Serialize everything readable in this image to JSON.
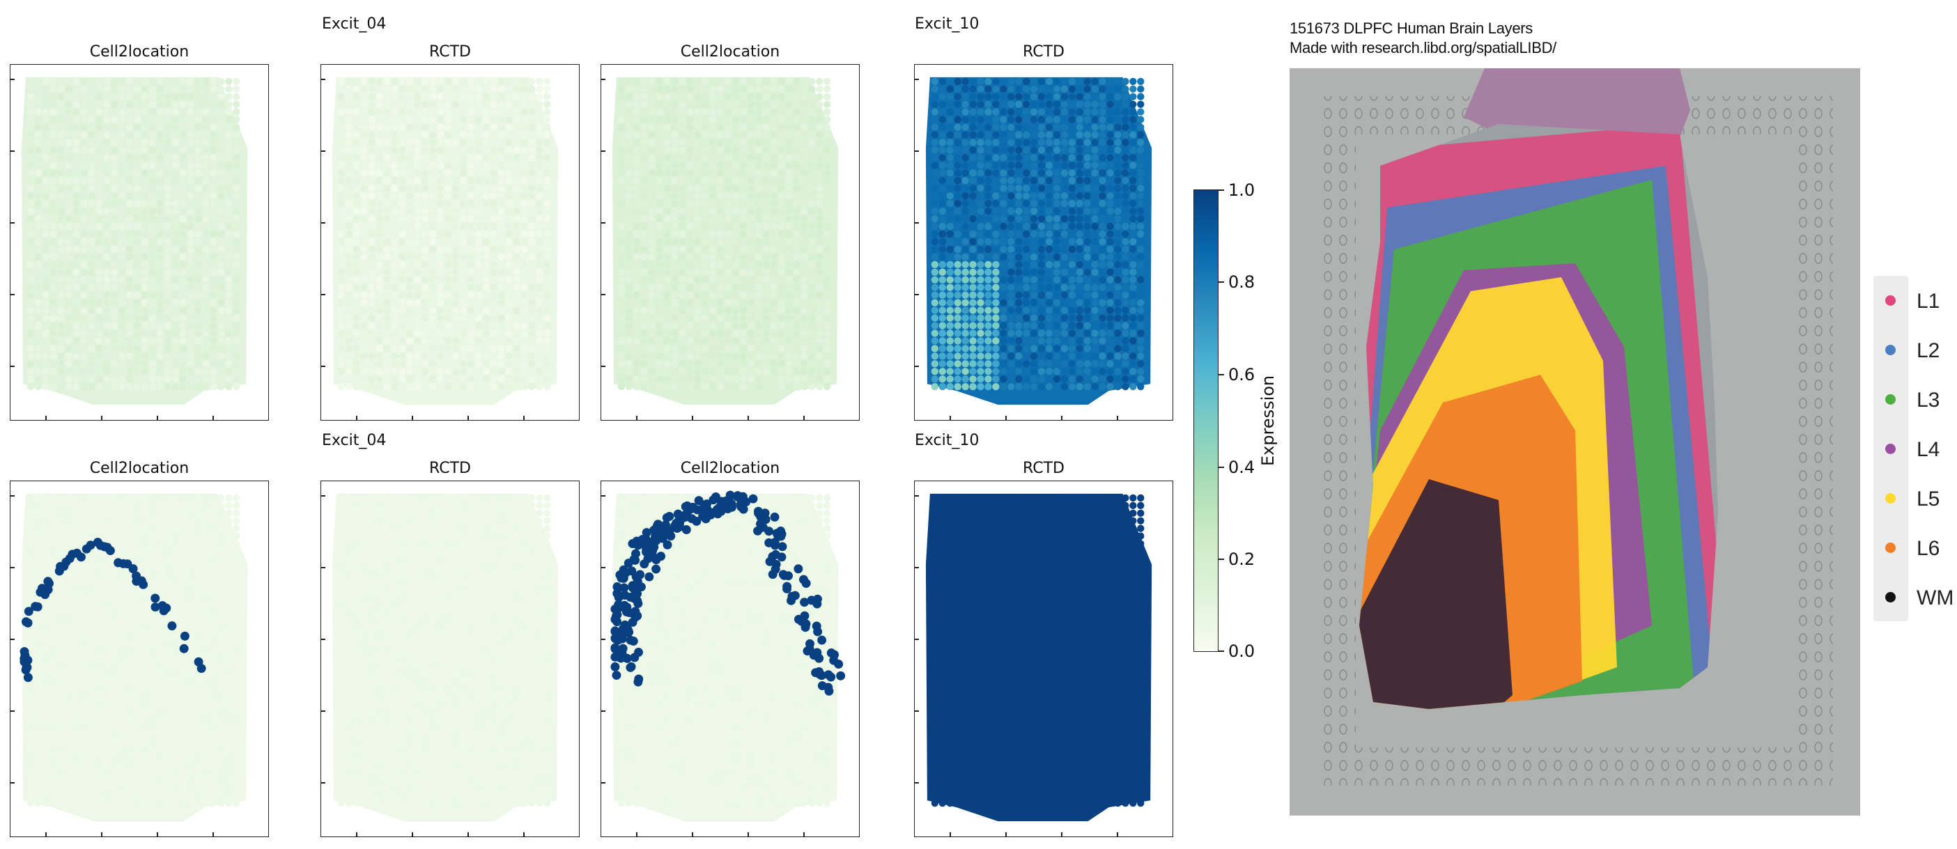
{
  "groups": [
    {
      "label": "Excit_04"
    },
    {
      "label": "Excit_10"
    },
    {
      "label": "Excit_04"
    },
    {
      "label": "Excit_10"
    }
  ],
  "panels": [
    {
      "title": "Cell2location",
      "style": "wash",
      "level": 0.12
    },
    {
      "title": "RCTD",
      "style": "wash",
      "level": 0.07
    },
    {
      "title": "Cell2location",
      "style": "wash",
      "level": 0.15
    },
    {
      "title": "RCTD",
      "style": "blue",
      "level": 0.85
    },
    {
      "title": "Cell2location",
      "style": "dots-arc-small"
    },
    {
      "title": "RCTD",
      "style": "empty"
    },
    {
      "title": "Cell2location",
      "style": "dots-arc-large"
    },
    {
      "title": "RCTD",
      "style": "solid"
    }
  ],
  "colorbar": {
    "label": "Expression",
    "ticks": [
      "1.0",
      "0.8",
      "0.6",
      "0.4",
      "0.2",
      "0.0"
    ],
    "min": 0.0,
    "max": 1.0
  },
  "reference": {
    "title_line1": "151673 DLPFC Human Brain Layers",
    "title_line2": "Made with research.libd.org/spatialLIBD/"
  },
  "legend": [
    {
      "label": "L1",
      "color": "#e0457b"
    },
    {
      "label": "L2",
      "color": "#4a7fc1"
    },
    {
      "label": "L3",
      "color": "#4caf3f"
    },
    {
      "label": "L4",
      "color": "#9b4fa3"
    },
    {
      "label": "L5",
      "color": "#ffd92f"
    },
    {
      "label": "L6",
      "color": "#f07f28"
    },
    {
      "label": "WM",
      "color": "#111111"
    }
  ]
}
